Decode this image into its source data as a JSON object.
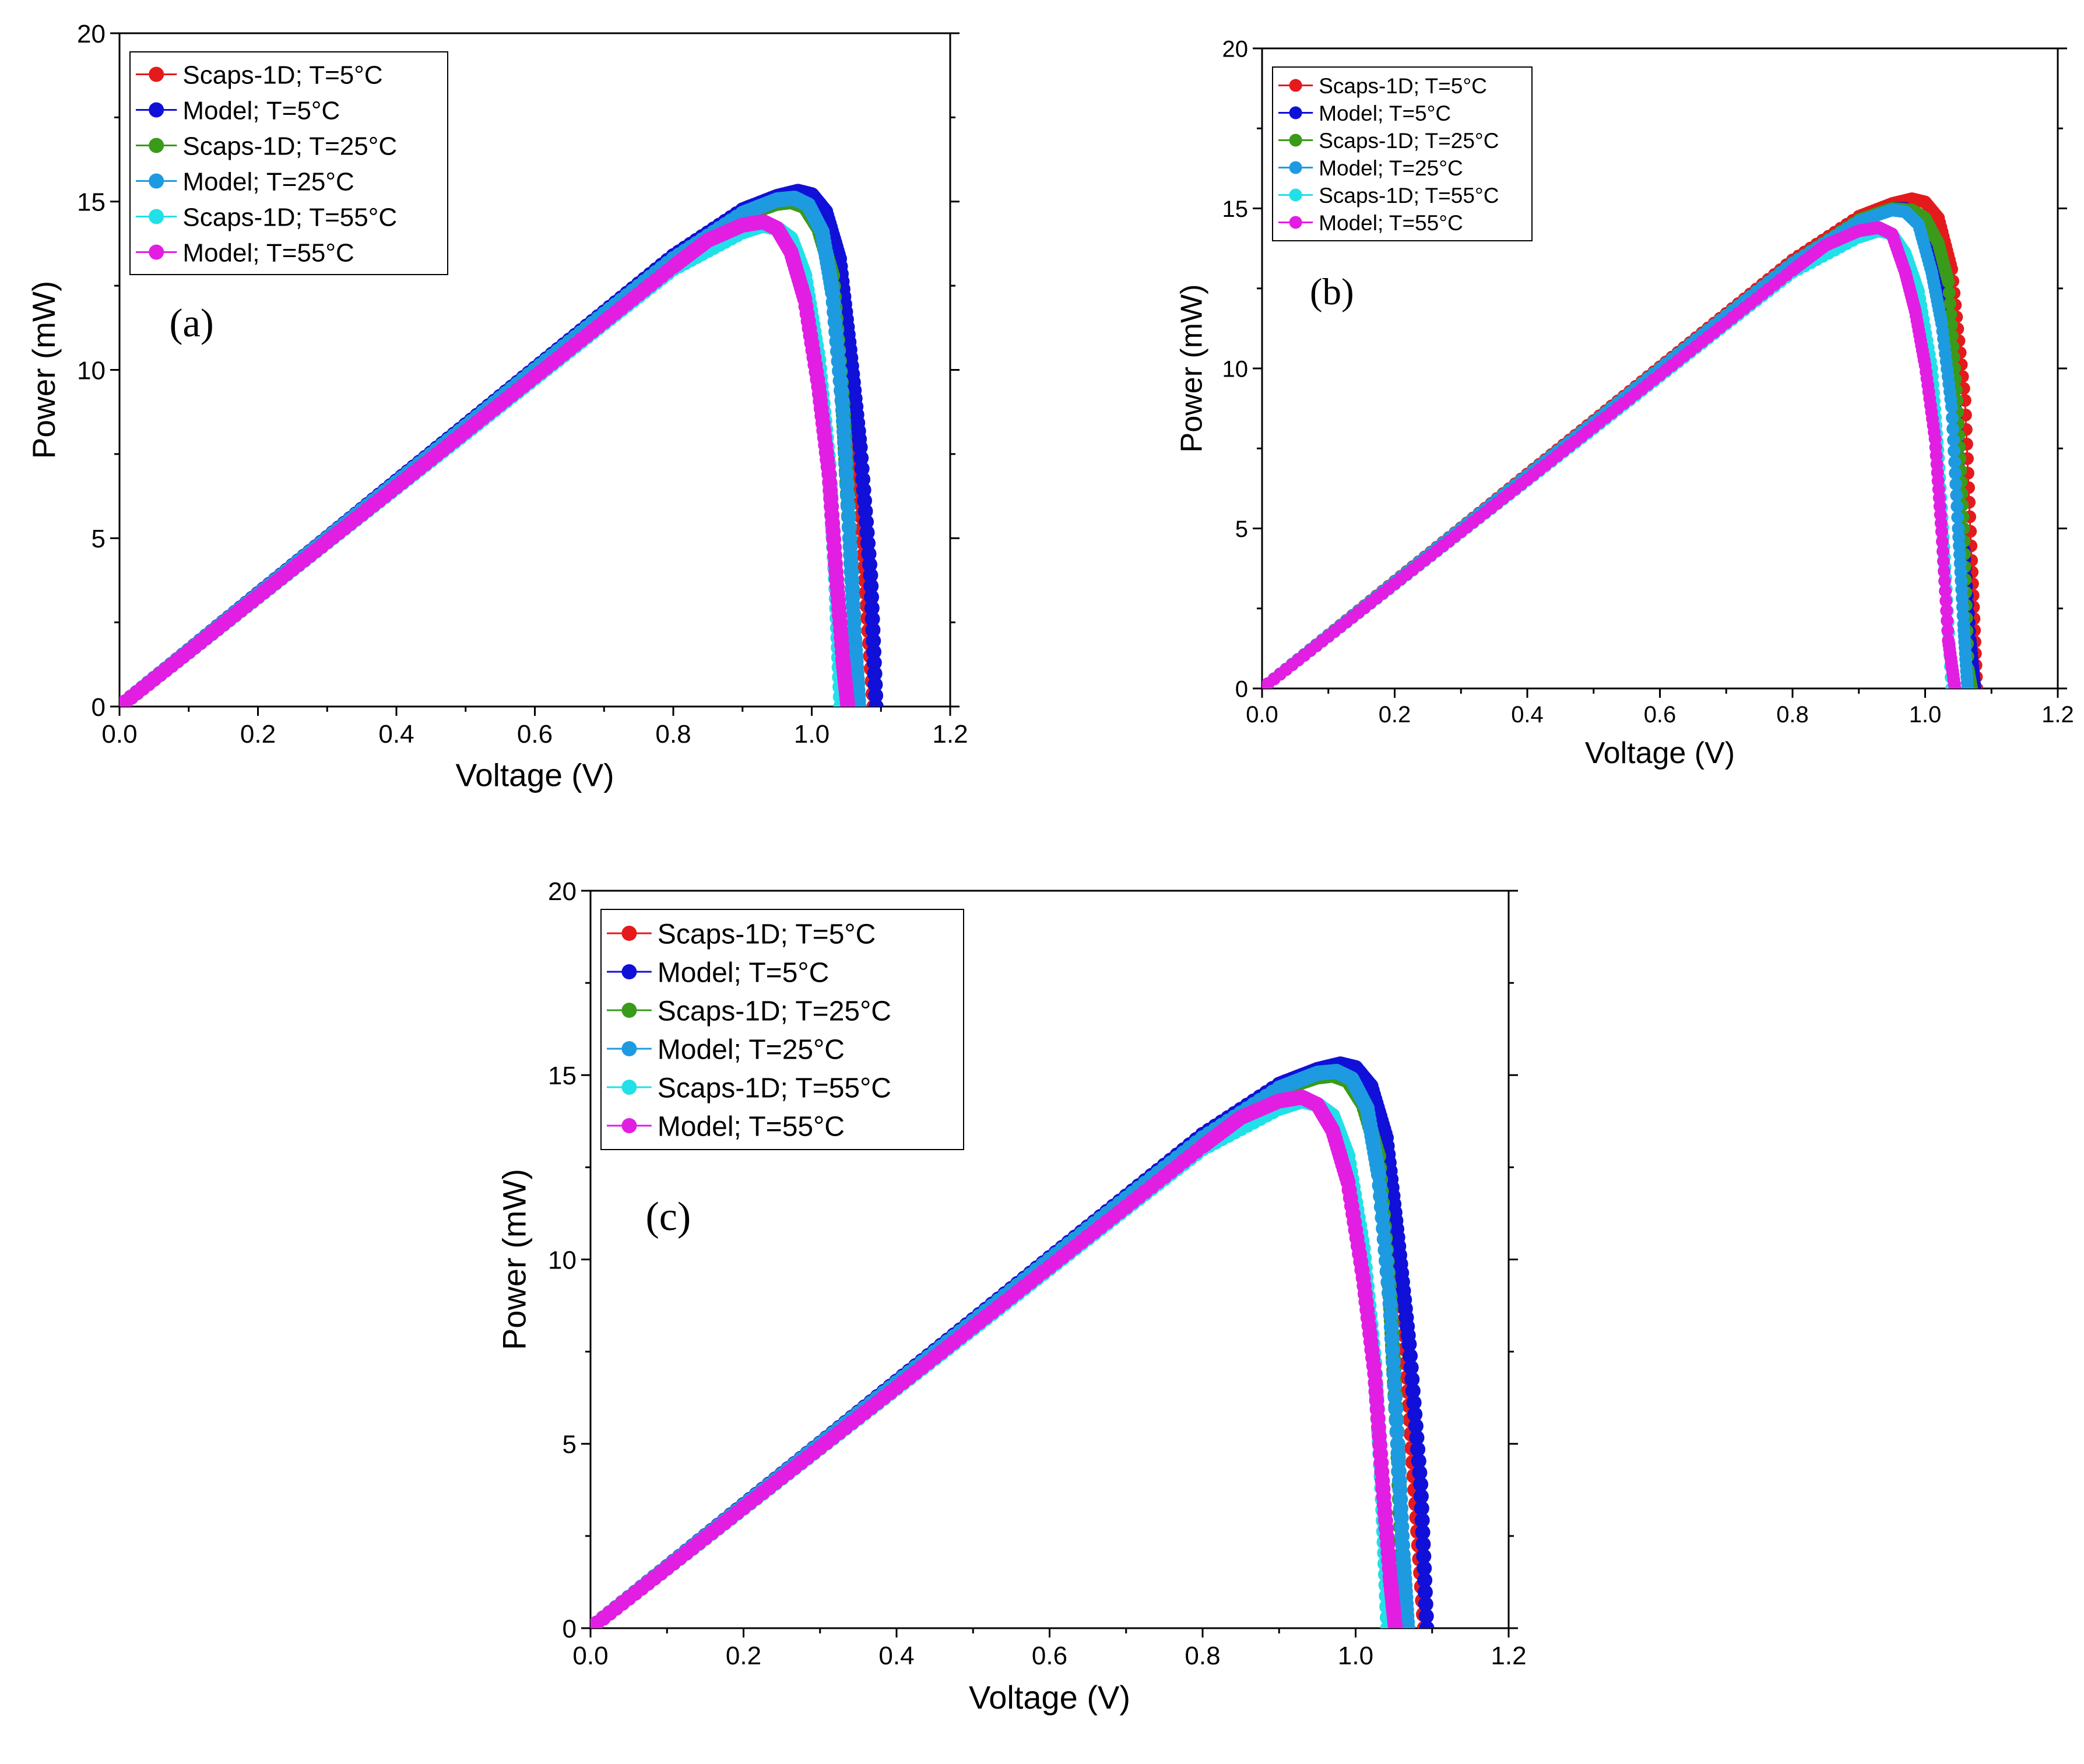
{
  "chart_data": [
    {
      "type": "line",
      "panel_label": "(a)",
      "xlabel": "Voltage (V)",
      "ylabel": "Power (mW)",
      "xlim": [
        0,
        1.2
      ],
      "ylim": [
        0,
        20
      ],
      "x_ticks": [
        "0.0",
        "0.2",
        "0.4",
        "0.6",
        "0.8",
        "1.0",
        "1.2"
      ],
      "y_ticks": [
        "0",
        "5",
        "10",
        "15",
        "20"
      ],
      "legend_position": "top-left",
      "series": [
        {
          "name": "Scaps-1D; T=5°C",
          "color": "#e41a1c",
          "x": [
            0,
            0.1,
            0.2,
            0.3,
            0.4,
            0.5,
            0.6,
            0.7,
            0.8,
            0.9,
            0.95,
            0.98,
            1.0,
            1.02,
            1.04,
            1.06,
            1.075,
            1.09
          ],
          "y": [
            0,
            1.67,
            3.35,
            5.02,
            6.7,
            8.37,
            10.05,
            11.72,
            13.39,
            14.75,
            15.15,
            15.3,
            15.2,
            14.6,
            13.1,
            9.1,
            4.5,
            0
          ]
        },
        {
          "name": "Model; T=5°C",
          "color": "#1010d8",
          "x": [
            0,
            0.1,
            0.2,
            0.3,
            0.4,
            0.5,
            0.6,
            0.7,
            0.8,
            0.9,
            0.95,
            0.98,
            1.0,
            1.02,
            1.04,
            1.055,
            1.07,
            1.085,
            1.093
          ],
          "y": [
            0,
            1.67,
            3.35,
            5.02,
            6.7,
            8.37,
            10.05,
            11.72,
            13.39,
            14.75,
            15.15,
            15.3,
            15.2,
            14.7,
            13.3,
            10.6,
            7.7,
            3.9,
            0
          ]
        },
        {
          "name": "Scaps-1D; T=25°C",
          "color": "#3a9a1a",
          "x": [
            0,
            0.1,
            0.2,
            0.3,
            0.4,
            0.5,
            0.6,
            0.7,
            0.8,
            0.9,
            0.95,
            0.97,
            0.99,
            1.01,
            1.03,
            1.045,
            1.055,
            1.062,
            1.068
          ],
          "y": [
            0,
            1.66,
            3.33,
            5.0,
            6.66,
            8.32,
            10.0,
            11.66,
            13.3,
            14.6,
            14.95,
            15.0,
            14.85,
            14.2,
            12.8,
            9.0,
            5.0,
            2.0,
            0
          ]
        },
        {
          "name": "Model; T=25°C",
          "color": "#1e9be0",
          "x": [
            0,
            0.1,
            0.2,
            0.3,
            0.4,
            0.5,
            0.6,
            0.7,
            0.8,
            0.9,
            0.95,
            0.975,
            0.995,
            1.015,
            1.03,
            1.045,
            1.055,
            1.062,
            1.068
          ],
          "y": [
            0,
            1.66,
            3.33,
            5.0,
            6.66,
            8.32,
            10.0,
            11.66,
            13.3,
            14.65,
            15.05,
            15.1,
            14.9,
            14.1,
            12.3,
            8.8,
            5.0,
            2.0,
            0
          ]
        },
        {
          "name": "Scaps-1D; T=55°C",
          "color": "#22e0e8",
          "x": [
            0,
            0.1,
            0.2,
            0.3,
            0.4,
            0.5,
            0.6,
            0.7,
            0.8,
            0.9,
            0.93,
            0.95,
            0.97,
            0.99,
            1.01,
            1.025,
            1.035,
            1.042
          ],
          "y": [
            0,
            1.62,
            3.25,
            4.88,
            6.5,
            8.12,
            9.75,
            11.38,
            13.0,
            14.1,
            14.3,
            14.2,
            13.9,
            12.8,
            10.3,
            7.2,
            3.5,
            0
          ]
        },
        {
          "name": "Model; T=55°C",
          "color": "#e21ee2",
          "x": [
            0,
            0.1,
            0.2,
            0.3,
            0.4,
            0.5,
            0.6,
            0.7,
            0.8,
            0.85,
            0.9,
            0.93,
            0.95,
            0.97,
            0.99,
            1.01,
            1.025,
            1.035,
            1.045,
            1.052
          ],
          "y": [
            0,
            1.63,
            3.27,
            4.9,
            6.53,
            8.17,
            9.8,
            11.43,
            13.07,
            13.85,
            14.3,
            14.4,
            14.2,
            13.5,
            12.1,
            9.5,
            6.9,
            4.0,
            1.4,
            0
          ]
        }
      ]
    },
    {
      "type": "line",
      "panel_label": "(b)",
      "xlabel": "Voltage (V)",
      "ylabel": "Power (mW)",
      "xlim": [
        0,
        1.2
      ],
      "ylim": [
        0,
        20
      ],
      "x_ticks": [
        "0.0",
        "0.2",
        "0.4",
        "0.6",
        "0.8",
        "1.0",
        "1.2"
      ],
      "y_ticks": [
        "0",
        "5",
        "10",
        "15",
        "20"
      ],
      "legend_position": "top-left",
      "series": [
        {
          "name": "Scaps-1D; T=5°C",
          "color": "#e41a1c",
          "x": [
            0,
            0.1,
            0.2,
            0.3,
            0.4,
            0.5,
            0.6,
            0.7,
            0.8,
            0.9,
            0.95,
            0.98,
            1.0,
            1.02,
            1.04,
            1.06,
            1.07,
            1.078
          ],
          "y": [
            0,
            1.67,
            3.35,
            5.02,
            6.7,
            8.37,
            10.05,
            11.72,
            13.39,
            14.75,
            15.15,
            15.3,
            15.2,
            14.7,
            13.1,
            9.0,
            4.0,
            0
          ]
        },
        {
          "name": "Model; T=5°C",
          "color": "#1010d8",
          "x": [
            0,
            0.1,
            0.2,
            0.3,
            0.4,
            0.5,
            0.6,
            0.7,
            0.8,
            0.9,
            0.95,
            0.97,
            0.99,
            1.01,
            1.03,
            1.045,
            1.058,
            1.068,
            1.075
          ],
          "y": [
            0,
            1.66,
            3.33,
            5.0,
            6.66,
            8.32,
            10.0,
            11.66,
            13.3,
            14.65,
            15.0,
            15.0,
            14.8,
            13.9,
            12.0,
            8.8,
            4.6,
            1.5,
            0
          ]
        },
        {
          "name": "Scaps-1D; T=25°C",
          "color": "#3a9a1a",
          "x": [
            0,
            0.1,
            0.2,
            0.3,
            0.4,
            0.5,
            0.6,
            0.7,
            0.8,
            0.9,
            0.95,
            0.98,
            1.0,
            1.02,
            1.035,
            1.048,
            1.058,
            1.065,
            1.07
          ],
          "y": [
            0,
            1.66,
            3.33,
            5.0,
            6.66,
            8.32,
            10.0,
            11.66,
            13.3,
            14.65,
            15.0,
            14.95,
            14.7,
            13.9,
            12.7,
            9.0,
            5.0,
            0.6,
            0
          ]
        },
        {
          "name": "Model; T=25°C",
          "color": "#1e9be0",
          "x": [
            0,
            0.1,
            0.2,
            0.3,
            0.4,
            0.5,
            0.6,
            0.7,
            0.8,
            0.9,
            0.95,
            0.97,
            0.99,
            1.01,
            1.025,
            1.04,
            1.05,
            1.058,
            1.064
          ],
          "y": [
            0,
            1.66,
            3.33,
            5.0,
            6.66,
            8.32,
            10.0,
            11.66,
            13.3,
            14.6,
            14.95,
            14.9,
            14.5,
            13.0,
            11.4,
            8.8,
            5.0,
            2.0,
            0
          ]
        },
        {
          "name": "Scaps-1D; T=55°C",
          "color": "#22e0e8",
          "x": [
            0,
            0.1,
            0.2,
            0.3,
            0.4,
            0.5,
            0.6,
            0.7,
            0.8,
            0.9,
            0.93,
            0.95,
            0.97,
            0.99,
            1.01,
            1.02,
            1.03,
            1.04
          ],
          "y": [
            0,
            1.62,
            3.25,
            4.88,
            6.5,
            8.12,
            9.75,
            11.38,
            13.0,
            14.1,
            14.3,
            14.2,
            13.6,
            12.4,
            10.0,
            7.2,
            3.8,
            0
          ]
        },
        {
          "name": "Model; T=55°C",
          "color": "#e21ee2",
          "x": [
            0,
            0.1,
            0.2,
            0.3,
            0.4,
            0.5,
            0.6,
            0.7,
            0.8,
            0.85,
            0.9,
            0.93,
            0.95,
            0.97,
            0.985,
            1.0,
            1.015,
            1.025,
            1.035,
            1.045
          ],
          "y": [
            0,
            1.63,
            3.27,
            4.9,
            6.53,
            8.17,
            9.8,
            11.43,
            13.07,
            13.85,
            14.3,
            14.4,
            14.2,
            13.0,
            11.8,
            10.1,
            7.8,
            4.9,
            1.5,
            0
          ]
        }
      ]
    },
    {
      "type": "line",
      "panel_label": "(c)",
      "xlabel": "Voltage (V)",
      "ylabel": "Power (mW)",
      "xlim": [
        0,
        1.2
      ],
      "ylim": [
        0,
        20
      ],
      "x_ticks": [
        "0.0",
        "0.2",
        "0.4",
        "0.6",
        "0.8",
        "1.0",
        "1.2"
      ],
      "y_ticks": [
        "0",
        "5",
        "10",
        "15",
        "20"
      ],
      "legend_position": "top-left",
      "series": [
        {
          "name": "Scaps-1D; T=5°C",
          "color": "#e41a1c",
          "x": [
            0,
            0.1,
            0.2,
            0.3,
            0.4,
            0.5,
            0.6,
            0.7,
            0.8,
            0.9,
            0.95,
            0.98,
            1.0,
            1.02,
            1.04,
            1.06,
            1.075,
            1.09
          ],
          "y": [
            0,
            1.67,
            3.35,
            5.02,
            6.7,
            8.37,
            10.05,
            11.72,
            13.39,
            14.75,
            15.15,
            15.3,
            15.2,
            14.6,
            13.1,
            9.1,
            4.5,
            0
          ]
        },
        {
          "name": "Model; T=5°C",
          "color": "#1010d8",
          "x": [
            0,
            0.1,
            0.2,
            0.3,
            0.4,
            0.5,
            0.6,
            0.7,
            0.8,
            0.9,
            0.95,
            0.98,
            1.0,
            1.02,
            1.04,
            1.055,
            1.07,
            1.085,
            1.093
          ],
          "y": [
            0,
            1.67,
            3.35,
            5.02,
            6.7,
            8.37,
            10.05,
            11.72,
            13.39,
            14.75,
            15.15,
            15.3,
            15.2,
            14.7,
            13.3,
            10.6,
            7.7,
            3.9,
            0
          ]
        },
        {
          "name": "Scaps-1D; T=25°C",
          "color": "#3a9a1a",
          "x": [
            0,
            0.1,
            0.2,
            0.3,
            0.4,
            0.5,
            0.6,
            0.7,
            0.8,
            0.9,
            0.95,
            0.97,
            0.99,
            1.01,
            1.03,
            1.045,
            1.055,
            1.062,
            1.068
          ],
          "y": [
            0,
            1.66,
            3.33,
            5.0,
            6.66,
            8.32,
            10.0,
            11.66,
            13.3,
            14.6,
            14.95,
            15.0,
            14.85,
            14.2,
            12.8,
            9.0,
            5.0,
            0.5,
            0
          ]
        },
        {
          "name": "Model; T=25°C",
          "color": "#1e9be0",
          "x": [
            0,
            0.1,
            0.2,
            0.3,
            0.4,
            0.5,
            0.6,
            0.7,
            0.8,
            0.9,
            0.95,
            0.975,
            0.995,
            1.015,
            1.03,
            1.045,
            1.055,
            1.062,
            1.068
          ],
          "y": [
            0,
            1.66,
            3.33,
            5.0,
            6.66,
            8.32,
            10.0,
            11.66,
            13.3,
            14.65,
            15.05,
            15.1,
            14.9,
            14.1,
            12.3,
            8.8,
            5.0,
            2.0,
            0
          ]
        },
        {
          "name": "Scaps-1D; T=55°C",
          "color": "#22e0e8",
          "x": [
            0,
            0.1,
            0.2,
            0.3,
            0.4,
            0.5,
            0.6,
            0.7,
            0.8,
            0.9,
            0.93,
            0.95,
            0.97,
            0.99,
            1.01,
            1.025,
            1.035,
            1.042
          ],
          "y": [
            0,
            1.62,
            3.25,
            4.88,
            6.5,
            8.12,
            9.75,
            11.38,
            13.0,
            14.1,
            14.3,
            14.2,
            13.9,
            12.8,
            10.3,
            7.2,
            3.5,
            0
          ]
        },
        {
          "name": "Model; T=55°C",
          "color": "#e21ee2",
          "x": [
            0,
            0.1,
            0.2,
            0.3,
            0.4,
            0.5,
            0.6,
            0.7,
            0.8,
            0.85,
            0.9,
            0.93,
            0.95,
            0.97,
            0.99,
            1.01,
            1.025,
            1.035,
            1.045,
            1.052
          ],
          "y": [
            0,
            1.63,
            3.27,
            4.9,
            6.53,
            8.17,
            9.8,
            11.43,
            13.07,
            13.85,
            14.3,
            14.4,
            14.2,
            13.5,
            12.1,
            9.5,
            6.9,
            4.0,
            1.4,
            0
          ]
        }
      ]
    }
  ]
}
